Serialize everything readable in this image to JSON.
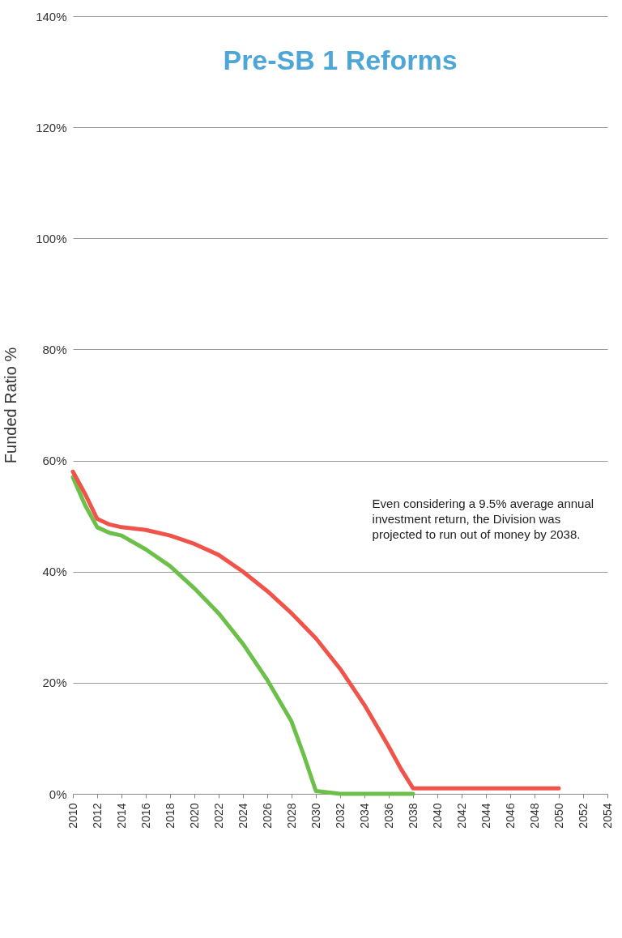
{
  "chart_data": {
    "type": "line",
    "title": "Pre-SB 1 Reforms",
    "ylabel": "Funded Ratio %",
    "x": [
      2010,
      2011,
      2012,
      2013,
      2014,
      2016,
      2018,
      2020,
      2022,
      2024,
      2026,
      2028,
      2030,
      2032,
      2034,
      2036,
      2037,
      2038,
      2040,
      2042,
      2044,
      2046,
      2048,
      2050
    ],
    "series": [
      {
        "color": "#6cc04a",
        "x": [
          2010,
          2011,
          2012,
          2013,
          2014,
          2016,
          2018,
          2020,
          2022,
          2024,
          2026,
          2028,
          2029,
          2030,
          2032,
          2034,
          2036,
          2038
        ],
        "values": [
          57,
          52,
          48,
          47,
          46.5,
          44,
          41,
          37,
          32.5,
          27,
          20.5,
          13,
          7,
          0.5,
          0,
          0,
          0,
          0
        ]
      },
      {
        "color": "#f0534a",
        "values": [
          58,
          54,
          49.5,
          48.5,
          48,
          47.5,
          46.5,
          45,
          43,
          40,
          36.5,
          32.5,
          28,
          22.5,
          16,
          8.5,
          4.5,
          1,
          1,
          1,
          1,
          1,
          1,
          1
        ]
      }
    ],
    "xlim": [
      2010,
      2054
    ],
    "xticks": [
      2010,
      2012,
      2014,
      2016,
      2018,
      2020,
      2022,
      2024,
      2026,
      2028,
      2030,
      2032,
      2034,
      2036,
      2038,
      2040,
      2042,
      2044,
      2046,
      2048,
      2050,
      2052,
      2054
    ],
    "ylim": [
      0,
      140
    ],
    "yticks": [
      {
        "value": 0,
        "label": "0%"
      },
      {
        "value": 20,
        "label": "20%"
      },
      {
        "value": 40,
        "label": "40%"
      },
      {
        "value": 60,
        "label": "60%"
      },
      {
        "value": 80,
        "label": "80%"
      },
      {
        "value": 100,
        "label": "100%"
      },
      {
        "value": 120,
        "label": "120%"
      },
      {
        "value": 140,
        "label": "140%"
      }
    ],
    "grid": "y",
    "legend": false,
    "line_style": "solid",
    "marker": "none",
    "annotations": [
      "Even considering a 9.5% average annual investment return, the Division was projected to run out of money by 2038."
    ]
  }
}
